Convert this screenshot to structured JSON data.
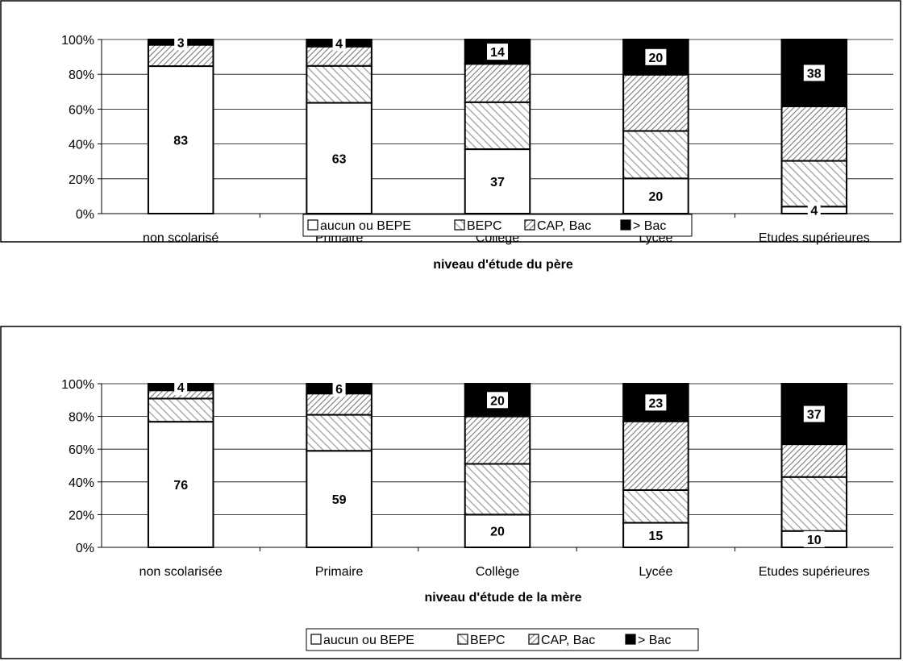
{
  "chart_data": [
    {
      "type": "bar",
      "stacked": true,
      "percent_stacked": true,
      "categories": [
        "non scolarisé",
        "Primaire",
        "Collège",
        "Lycée",
        "Etudes supérieures"
      ],
      "series": [
        {
          "name": "aucun ou BEPE",
          "values": [
            83,
            63,
            37,
            20,
            4
          ],
          "fill": "plain"
        },
        {
          "name": "BEPC",
          "values": [
            0,
            21,
            27,
            27,
            26
          ],
          "fill": "hatch"
        },
        {
          "name": "CAP, Bac",
          "values": [
            12,
            11,
            22,
            32,
            31
          ],
          "fill": "crosshatch"
        },
        {
          "name": "> Bac",
          "values": [
            3,
            4,
            14,
            20,
            38
          ],
          "fill": "solid"
        }
      ],
      "data_labels": [
        {
          "category": "non scolarisé",
          "series": "aucun ou BEPE",
          "text": "83"
        },
        {
          "category": "non scolarisé",
          "series": "> Bac",
          "text": "3"
        },
        {
          "category": "Primaire",
          "series": "aucun ou BEPE",
          "text": "63"
        },
        {
          "category": "Primaire",
          "series": "> Bac",
          "text": "4"
        },
        {
          "category": "Collège",
          "series": "aucun ou BEPE",
          "text": "37"
        },
        {
          "category": "Collège",
          "series": "> Bac",
          "text": "14"
        },
        {
          "category": "Lycée",
          "series": "aucun ou BEPE",
          "text": "20"
        },
        {
          "category": "Lycée",
          "series": "> Bac",
          "text": "20"
        },
        {
          "category": "Etudes supérieures",
          "series": "aucun ou BEPE",
          "text": "4"
        },
        {
          "category": "Etudes supérieures",
          "series": "> Bac",
          "text": "38"
        }
      ],
      "yticks": [
        "0%",
        "20%",
        "40%",
        "60%",
        "80%",
        "100%"
      ],
      "ylim": [
        0,
        100
      ],
      "xlabel": "niveau d'étude du père",
      "ylabel": "",
      "title": "",
      "grid": true,
      "legend_position": "bottom",
      "legend_labels": [
        "aucun ou BEPE",
        "BEPC",
        "CAP, Bac",
        "> Bac"
      ]
    },
    {
      "type": "bar",
      "stacked": true,
      "percent_stacked": true,
      "categories": [
        "non scolarisée",
        "Primaire",
        "Collège",
        "Lycée",
        "Etudes supérieures"
      ],
      "series": [
        {
          "name": "aucun ou BEPE",
          "values": [
            76,
            59,
            20,
            15,
            10
          ],
          "fill": "plain"
        },
        {
          "name": "BEPC",
          "values": [
            14,
            22,
            31,
            20,
            33
          ],
          "fill": "hatch"
        },
        {
          "name": "CAP, Bac",
          "values": [
            5,
            13,
            29,
            42,
            20
          ],
          "fill": "crosshatch"
        },
        {
          "name": "> Bac",
          "values": [
            4,
            6,
            20,
            23,
            37
          ],
          "fill": "solid"
        }
      ],
      "data_labels": [
        {
          "category": "non scolarisée",
          "series": "aucun ou BEPE",
          "text": "76"
        },
        {
          "category": "non scolarisée",
          "series": "> Bac",
          "text": "4"
        },
        {
          "category": "Primaire",
          "series": "aucun ou BEPE",
          "text": "59"
        },
        {
          "category": "Primaire",
          "series": "> Bac",
          "text": "6"
        },
        {
          "category": "Collège",
          "series": "aucun ou BEPE",
          "text": "20"
        },
        {
          "category": "Collège",
          "series": "> Bac",
          "text": "20"
        },
        {
          "category": "Lycée",
          "series": "aucun ou BEPE",
          "text": "15"
        },
        {
          "category": "Lycée",
          "series": "> Bac",
          "text": "23"
        },
        {
          "category": "Etudes supérieures",
          "series": "aucun ou BEPE",
          "text": "10"
        },
        {
          "category": "Etudes supérieures",
          "series": "> Bac",
          "text": "37"
        }
      ],
      "yticks": [
        "0%",
        "20%",
        "40%",
        "60%",
        "80%",
        "100%"
      ],
      "ylim": [
        0,
        100
      ],
      "xlabel": "niveau d'étude de la mère",
      "ylabel": "",
      "title": "",
      "grid": true,
      "legend_position": "bottom",
      "legend_labels": [
        "aucun ou BEPE",
        "BEPC",
        "CAP, Bac",
        "> Bac"
      ]
    }
  ]
}
